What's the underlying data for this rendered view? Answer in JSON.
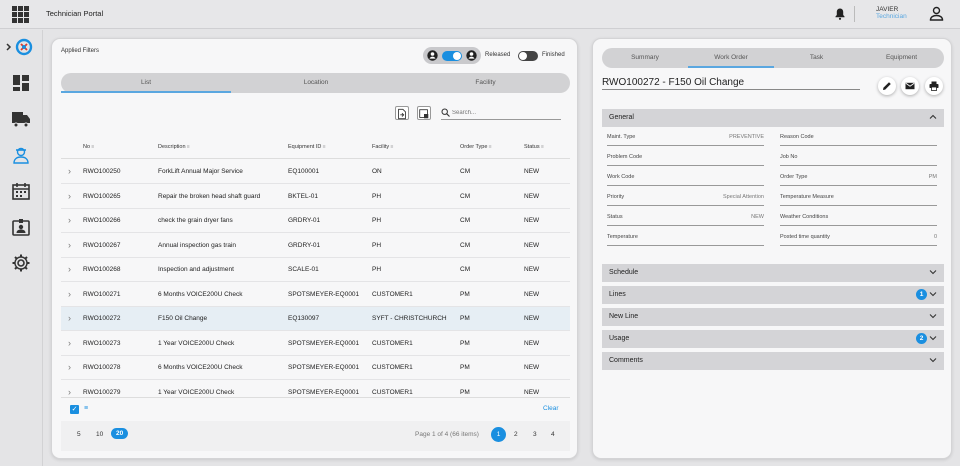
{
  "app": {
    "title": "Technician Portal"
  },
  "user": {
    "name": "JAVIER",
    "role": "Technician"
  },
  "left": {
    "applied_filters": "Applied Filters",
    "toggle_released": "Released",
    "toggle_finished": "Finished",
    "view_tabs": [
      "List",
      "Location",
      "Facility"
    ],
    "search_placeholder": "Search...",
    "columns": [
      "No",
      "Description",
      "Equipment ID",
      "Facility",
      "Order Type",
      "Status"
    ],
    "rows": [
      {
        "no": "RWO100250",
        "desc": "ForkLift Annual Major Service",
        "equip": "EQ100001",
        "facility": "ON",
        "type": "CM",
        "status": "NEW"
      },
      {
        "no": "RWO100265",
        "desc": "Repair the broken head shaft guard",
        "equip": "BKTEL-01",
        "facility": "PH",
        "type": "CM",
        "status": "NEW"
      },
      {
        "no": "RWO100266",
        "desc": "check the grain dryer fans",
        "equip": "GRDRY-01",
        "facility": "PH",
        "type": "CM",
        "status": "NEW"
      },
      {
        "no": "RWO100267",
        "desc": "Annual inspection gas train",
        "equip": "GRDRY-01",
        "facility": "PH",
        "type": "CM",
        "status": "NEW"
      },
      {
        "no": "RWO100268",
        "desc": "Inspection and adjustment",
        "equip": "SCALE-01",
        "facility": "PH",
        "type": "CM",
        "status": "NEW"
      },
      {
        "no": "RWO100271",
        "desc": "6 Months VOICE200U Check",
        "equip": "SPOTSMEYER-EQ0001",
        "facility": "CUSTOMER1",
        "type": "PM",
        "status": "NEW"
      },
      {
        "no": "RWO100272",
        "desc": "F150 Oil Change",
        "equip": "EQ130097",
        "facility": "SYFT - CHRISTCHURCH",
        "type": "PM",
        "status": "NEW"
      },
      {
        "no": "RWO100273",
        "desc": "1 Year VOICE200U Check",
        "equip": "SPOTSMEYER-EQ0001",
        "facility": "CUSTOMER1",
        "type": "PM",
        "status": "NEW"
      },
      {
        "no": "RWO100278",
        "desc": "6 Months VOICE200U Check",
        "equip": "SPOTSMEYER-EQ0001",
        "facility": "CUSTOMER1",
        "type": "PM",
        "status": "NEW"
      },
      {
        "no": "RWO100279",
        "desc": "1 Year VOICE200U Check",
        "equip": "SPOTSMEYER-EQ0001",
        "facility": "CUSTOMER1",
        "type": "PM",
        "status": "NEW"
      }
    ],
    "selected_row": 6,
    "clear_label": "Clear",
    "page_sizes": [
      "5",
      "10",
      "20"
    ],
    "page_size_selected": "20",
    "page_info": "Page 1 of 4 (66 items)",
    "pages": [
      "1",
      "2",
      "3",
      "4"
    ],
    "current_page": "1"
  },
  "right": {
    "tabs": [
      "Summary",
      "Work Order",
      "Task",
      "Equipment"
    ],
    "active_tab": "Work Order",
    "title": "RWO100272 - F150 Oil Change",
    "sections": {
      "general": "General",
      "schedule": "Schedule",
      "lines": "Lines",
      "lines_badge": "1",
      "new_line": "New Line",
      "usage": "Usage",
      "usage_badge": "2",
      "comments": "Comments"
    },
    "fields": {
      "maint_type_label": "Maint. Type",
      "maint_type_value": "PREVENTIVE",
      "reason_code_label": "Reason Code",
      "problem_code_label": "Problem Code",
      "job_no_label": "Job No",
      "work_code_label": "Work Code",
      "order_type_label": "Order Type",
      "order_type_value": "PM",
      "priority_label": "Priority",
      "priority_value": "Special Attention",
      "temp_measure_label": "Temperature Measure",
      "status_label": "Status",
      "status_value": "NEW",
      "weather_label": "Weather Conditions",
      "temperature_label": "Temperature",
      "posted_time_label": "Posted time quantity",
      "posted_time_value": "0"
    }
  },
  "colors": {
    "accent": "#1a8fe0",
    "background": "#e4e4e6",
    "panel": "#f7f7f8"
  }
}
